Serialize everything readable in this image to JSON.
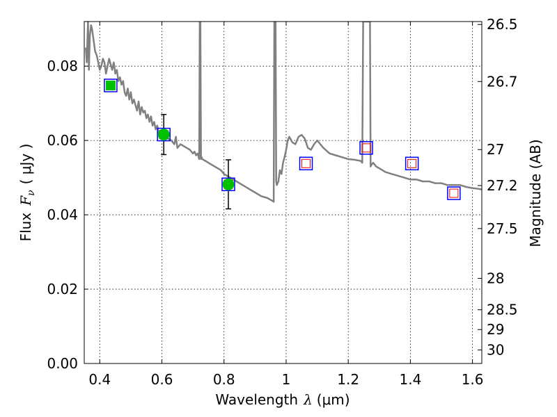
{
  "chart_data": {
    "type": "line",
    "xlabel": "Wavelength",
    "xlabel_symbol": "λ",
    "xlabel_unit": "(μm)",
    "ylabel": "Flux",
    "ylabel_symbol": "F",
    "ylabel_subscript": "ν",
    "ylabel_unit": "( μJy )",
    "y2label": "Magnitude (AB)",
    "xlim": [
      0.35,
      1.63
    ],
    "ylim": [
      0.0,
      0.092
    ],
    "grid": true,
    "x_ticks": [
      {
        "value": 0.4,
        "label": "0.4"
      },
      {
        "value": 0.6,
        "label": "0.6"
      },
      {
        "value": 0.8,
        "label": "0.8"
      },
      {
        "value": 1.0,
        "label": "1"
      },
      {
        "value": 1.2,
        "label": "1.2"
      },
      {
        "value": 1.4,
        "label": "1.4"
      },
      {
        "value": 1.6,
        "label": "1.6"
      }
    ],
    "y_ticks": [
      {
        "value": 0.0,
        "label": "0.00"
      },
      {
        "value": 0.02,
        "label": "0.02"
      },
      {
        "value": 0.04,
        "label": "0.04"
      },
      {
        "value": 0.06,
        "label": "0.06"
      },
      {
        "value": 0.08,
        "label": "0.08"
      }
    ],
    "y2_ticks": [
      {
        "mag": 26.5,
        "label": "26.5"
      },
      {
        "mag": 26.7,
        "label": "26.7"
      },
      {
        "mag": 27.0,
        "label": "27"
      },
      {
        "mag": 27.2,
        "label": "27.2"
      },
      {
        "mag": 27.5,
        "label": "27.5"
      },
      {
        "mag": 28.0,
        "label": "28"
      },
      {
        "mag": 28.5,
        "label": "28.5"
      },
      {
        "mag": 29.0,
        "label": "29"
      },
      {
        "mag": 30.0,
        "label": "30"
      }
    ],
    "sed_model": {
      "color": "#808080",
      "x": [
        0.355,
        0.358,
        0.362,
        0.365,
        0.368,
        0.372,
        0.375,
        0.38,
        0.385,
        0.39,
        0.395,
        0.4,
        0.405,
        0.41,
        0.415,
        0.42,
        0.43,
        0.44,
        0.445,
        0.45,
        0.455,
        0.46,
        0.465,
        0.47,
        0.475,
        0.48,
        0.485,
        0.49,
        0.495,
        0.5,
        0.505,
        0.51,
        0.515,
        0.52,
        0.525,
        0.53,
        0.535,
        0.54,
        0.545,
        0.55,
        0.555,
        0.56,
        0.565,
        0.57,
        0.575,
        0.58,
        0.585,
        0.59,
        0.6,
        0.61,
        0.62,
        0.63,
        0.64,
        0.645,
        0.65,
        0.66,
        0.67,
        0.68,
        0.69,
        0.7,
        0.705,
        0.71,
        0.715,
        0.72,
        0.722,
        0.724,
        0.726,
        0.728,
        0.73,
        0.74,
        0.75,
        0.76,
        0.77,
        0.78,
        0.79,
        0.8,
        0.82,
        0.84,
        0.86,
        0.88,
        0.9,
        0.92,
        0.94,
        0.955,
        0.96,
        0.962,
        0.964,
        0.966,
        0.968,
        0.97,
        0.975,
        0.98,
        0.985,
        0.99,
        0.995,
        1.0,
        1.005,
        1.01,
        1.02,
        1.03,
        1.04,
        1.05,
        1.06,
        1.07,
        1.08,
        1.09,
        1.1,
        1.12,
        1.14,
        1.16,
        1.18,
        1.2,
        1.22,
        1.24,
        1.245,
        1.248,
        1.25,
        1.252,
        1.255,
        1.26,
        1.27,
        1.272,
        1.275,
        1.28,
        1.29,
        1.3,
        1.32,
        1.34,
        1.36,
        1.38,
        1.4,
        1.42,
        1.44,
        1.46,
        1.48,
        1.5,
        1.52,
        1.54,
        1.56,
        1.58,
        1.6,
        1.62,
        1.63
      ],
      "y": [
        0.085,
        0.081,
        0.092,
        0.079,
        0.088,
        0.091,
        0.09,
        0.087,
        0.084,
        0.083,
        0.081,
        0.079,
        0.08,
        0.082,
        0.081,
        0.078,
        0.082,
        0.079,
        0.081,
        0.078,
        0.079,
        0.076,
        0.077,
        0.075,
        0.076,
        0.073,
        0.072,
        0.074,
        0.071,
        0.073,
        0.07,
        0.071,
        0.0695,
        0.068,
        0.0705,
        0.067,
        0.069,
        0.0675,
        0.068,
        0.066,
        0.067,
        0.065,
        0.0665,
        0.064,
        0.065,
        0.063,
        0.064,
        0.062,
        0.0625,
        0.061,
        0.0605,
        0.06,
        0.059,
        0.061,
        0.058,
        0.059,
        0.0585,
        0.058,
        0.0575,
        0.0565,
        0.057,
        0.056,
        0.0565,
        0.055,
        0.092,
        0.092,
        0.055,
        0.0555,
        0.055,
        0.0545,
        0.054,
        0.0535,
        0.053,
        0.0525,
        0.052,
        0.051,
        0.05,
        0.049,
        0.048,
        0.047,
        0.046,
        0.045,
        0.0445,
        0.0438,
        0.0435,
        0.092,
        0.092,
        0.092,
        0.049,
        0.048,
        0.049,
        0.052,
        0.051,
        0.054,
        0.0555,
        0.0575,
        0.06,
        0.061,
        0.0595,
        0.059,
        0.061,
        0.0615,
        0.0605,
        0.058,
        0.0575,
        0.059,
        0.06,
        0.058,
        0.0565,
        0.056,
        0.0555,
        0.055,
        0.0548,
        0.0545,
        0.054,
        0.092,
        0.092,
        0.092,
        0.092,
        0.092,
        0.092,
        0.053,
        0.0535,
        0.054,
        0.053,
        0.0525,
        0.0515,
        0.051,
        0.0505,
        0.05,
        0.0495,
        0.0495,
        0.049,
        0.049,
        0.0485,
        0.0485,
        0.048,
        0.048,
        0.048,
        0.0475,
        0.0472,
        0.047,
        0.0468
      ]
    },
    "observed": {
      "color": "#00c000",
      "x": [
        0.435,
        0.606,
        0.814
      ],
      "y": [
        0.0748,
        0.0616,
        0.0482
      ],
      "err": [
        null,
        0.0054,
        0.0066
      ]
    },
    "model_photometry": {
      "color": "#ff0000",
      "x": [
        0.435,
        0.606,
        0.814,
        1.064,
        1.258,
        1.405,
        1.54
      ],
      "y": [
        0.0748,
        0.0616,
        0.0482,
        0.0538,
        0.058,
        0.0538,
        0.0458
      ]
    },
    "model_boxes": {
      "color": "#0000ff",
      "x": [
        0.435,
        0.606,
        0.814,
        1.064,
        1.258,
        1.405,
        1.54
      ],
      "y": [
        0.0748,
        0.0616,
        0.0482,
        0.0538,
        0.058,
        0.0538,
        0.0458
      ]
    }
  }
}
